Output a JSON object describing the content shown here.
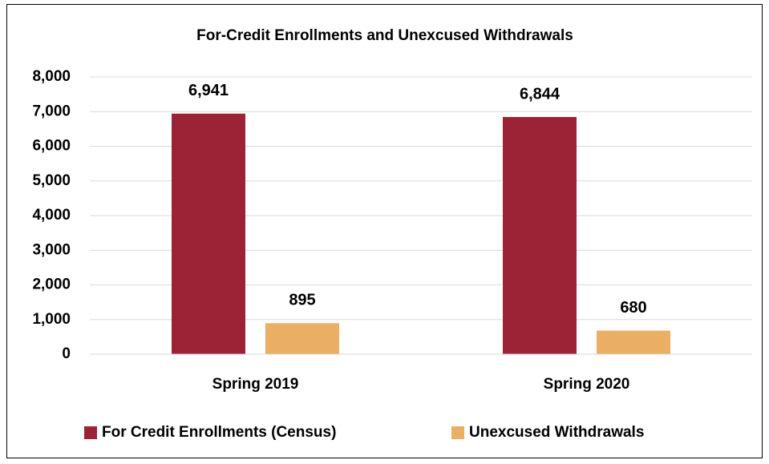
{
  "chart_data": {
    "type": "bar",
    "title": "For-Credit Enrollments and Unexcused Withdrawals",
    "categories": [
      "Spring 2019",
      "Spring 2020"
    ],
    "series": [
      {
        "name": "For Credit Enrollments (Census)",
        "color": "#9c2236",
        "values": [
          6941,
          6844
        ],
        "value_labels": [
          "6,941",
          "6,844"
        ]
      },
      {
        "name": "Unexcused Withdrawals",
        "color": "#eaae64",
        "values": [
          895,
          680
        ]
      }
    ],
    "ylim": [
      0,
      8000
    ],
    "yticks": [
      0,
      {
        "value": 1000,
        "label": "1,000"
      },
      {
        "value": 2000,
        "label": "2,000"
      },
      {
        "value": 3000,
        "label": "3,000"
      },
      {
        "value": 4000,
        "label": "4,000"
      },
      {
        "value": 5000,
        "label": "5,000"
      },
      {
        "value": 6000,
        "label": "6,000"
      },
      {
        "value": 7000,
        "label": "7,000"
      },
      {
        "value": 8000,
        "label": "8,000"
      }
    ],
    "grid": true,
    "legend": "bottom"
  }
}
